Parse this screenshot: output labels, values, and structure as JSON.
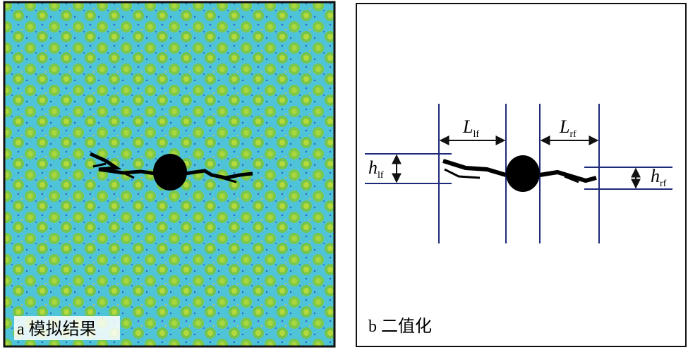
{
  "panel_a": {
    "caption": "a 模拟结果"
  },
  "panel_b": {
    "caption": "b 二值化",
    "annotations": [
      {
        "symbol": "L",
        "subscript": "lf"
      },
      {
        "symbol": "L",
        "subscript": "rf"
      },
      {
        "symbol": "h",
        "subscript": "lf"
      },
      {
        "symbol": "h",
        "subscript": "rf"
      }
    ]
  }
}
